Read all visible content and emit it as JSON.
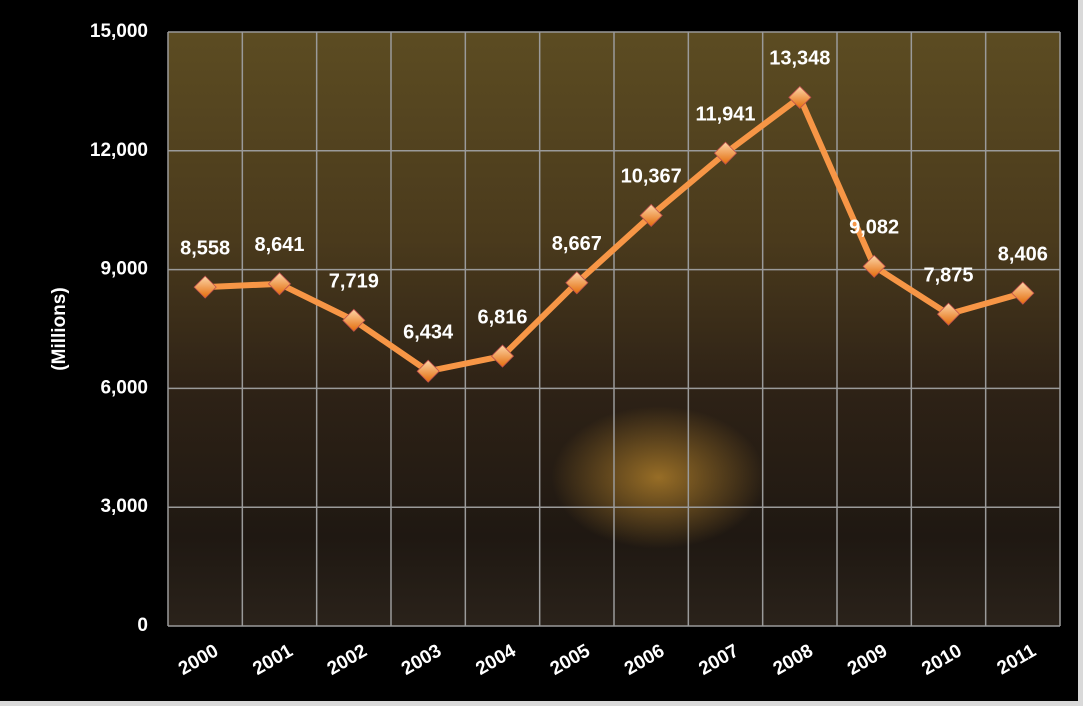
{
  "chart_data": {
    "type": "line",
    "y_label": "(Millions)",
    "categories": [
      "2000",
      "2001",
      "2002",
      "2003",
      "2004",
      "2005",
      "2006",
      "2007",
      "2008",
      "2009",
      "2010",
      "2011"
    ],
    "series": [
      {
        "color": "#f79646",
        "values": [
          8558,
          8641,
          7719,
          6434,
          6816,
          8667,
          10367,
          11941,
          13348,
          9082,
          7875,
          8406
        ],
        "value_labels": [
          "8,558",
          "8,641",
          "7,719",
          "6,434",
          "6,816",
          "8,667",
          "10,367",
          "11,941",
          "13,348",
          "9,082",
          "7,875",
          "8,406"
        ]
      }
    ],
    "ylim": [
      0,
      15000
    ],
    "yticks": [
      0,
      {
        "value": 3000,
        "label": "3,000"
      },
      {
        "value": 6000,
        "label": "6,000"
      },
      {
        "value": 9000,
        "label": "9,000"
      },
      {
        "value": 12000,
        "label": "12,000"
      },
      {
        "value": 15000,
        "label": "15,000"
      }
    ],
    "grid": true
  }
}
